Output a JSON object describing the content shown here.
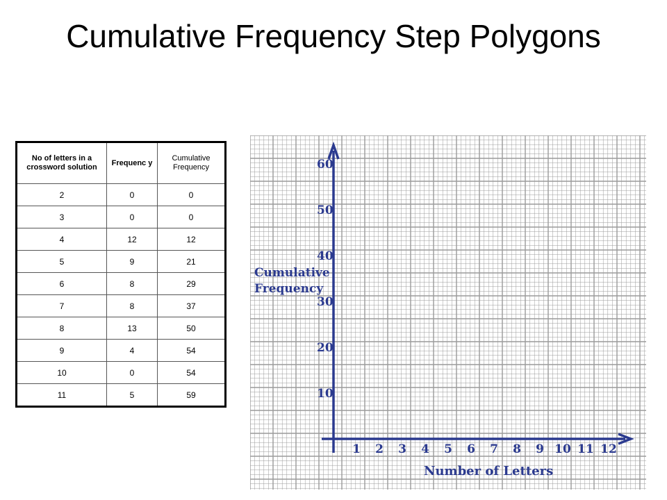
{
  "title": "Cumulative Frequency Step Polygons",
  "table": {
    "headers": [
      "No of letters in a crossword solution",
      "Frequenc y",
      "Cumulative Frequency"
    ],
    "rows": [
      [
        "2",
        "0",
        "0"
      ],
      [
        "3",
        "0",
        "0"
      ],
      [
        "4",
        "12",
        "12"
      ],
      [
        "5",
        "9",
        "21"
      ],
      [
        "6",
        "8",
        "29"
      ],
      [
        "7",
        "8",
        "37"
      ],
      [
        "8",
        "13",
        "50"
      ],
      [
        "9",
        "4",
        "54"
      ],
      [
        "10",
        "0",
        "54"
      ],
      [
        "11",
        "5",
        "59"
      ]
    ]
  },
  "graph": {
    "y_axis_label_line1": "Cumulative",
    "y_axis_label_line2": "Frequency",
    "x_axis_label": "Number of Letters",
    "y_ticks": [
      "10",
      "20",
      "30",
      "40",
      "50",
      "60"
    ],
    "x_ticks": [
      "1",
      "2",
      "3",
      "4",
      "5",
      "6",
      "7",
      "8",
      "9",
      "10",
      "11",
      "12"
    ],
    "ink_color": "#2b3a8f",
    "grid_color": "#9a9a9a"
  }
}
